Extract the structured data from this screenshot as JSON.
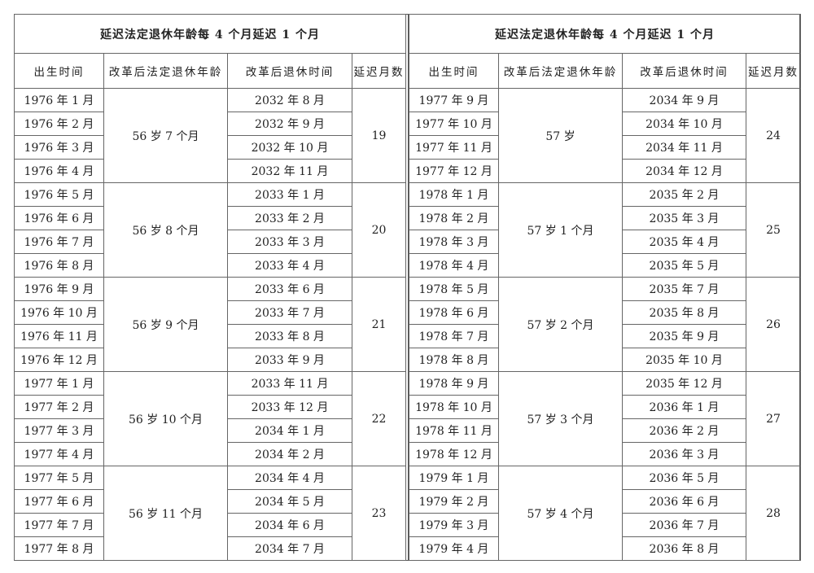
{
  "left": {
    "title": "延迟法定退休年龄每 4 个月延迟 1 个月",
    "headers": [
      "出生时间",
      "改革后法定退休年龄",
      "改革后退休时间",
      "延迟月数"
    ],
    "groups": [
      {
        "birth": [
          "1976 年 1 月",
          "1976 年 2 月",
          "1976 年 3 月",
          "1976 年 4 月"
        ],
        "age": "56 岁 7 个月",
        "retire": [
          "2032 年 8 月",
          "2032 年 9 月",
          "2032 年 10 月",
          "2032 年 11 月"
        ],
        "delay": "19"
      },
      {
        "birth": [
          "1976 年 5 月",
          "1976 年 6 月",
          "1976 年 7 月",
          "1976 年 8 月"
        ],
        "age": "56 岁 8 个月",
        "retire": [
          "2033 年 1 月",
          "2033 年 2 月",
          "2033 年 3 月",
          "2033 年 4 月"
        ],
        "delay": "20"
      },
      {
        "birth": [
          "1976 年 9 月",
          "1976 年 10 月",
          "1976 年 11 月",
          "1976 年 12 月"
        ],
        "age": "56 岁 9 个月",
        "retire": [
          "2033 年 6 月",
          "2033 年 7 月",
          "2033 年 8 月",
          "2033 年 9 月"
        ],
        "delay": "21"
      },
      {
        "birth": [
          "1977 年 1 月",
          "1977 年 2 月",
          "1977 年 3 月",
          "1977 年 4 月"
        ],
        "age": "56 岁 10 个月",
        "retire": [
          "2033 年 11 月",
          "2033 年 12 月",
          "2034 年 1 月",
          "2034 年 2 月"
        ],
        "delay": "22"
      },
      {
        "birth": [
          "1977 年 5 月",
          "1977 年 6 月",
          "1977 年 7 月",
          "1977 年 8 月"
        ],
        "age": "56 岁 11 个月",
        "retire": [
          "2034 年 4 月",
          "2034 年 5 月",
          "2034 年 6 月",
          "2034 年 7 月"
        ],
        "delay": "23"
      }
    ]
  },
  "right": {
    "title": "延迟法定退休年龄每 4 个月延迟 1 个月",
    "headers": [
      "出生时间",
      "改革后法定退休年龄",
      "改革后退休时间",
      "延迟月数"
    ],
    "groups": [
      {
        "birth": [
          "1977 年 9 月",
          "1977 年 10 月",
          "1977 年 11 月",
          "1977 年 12 月"
        ],
        "age": "57 岁",
        "retire": [
          "2034 年 9 月",
          "2034 年 10 月",
          "2034 年 11 月",
          "2034 年 12 月"
        ],
        "delay": "24"
      },
      {
        "birth": [
          "1978 年 1 月",
          "1978 年 2 月",
          "1978 年 3 月",
          "1978 年 4 月"
        ],
        "age": "57 岁 1 个月",
        "retire": [
          "2035 年 2 月",
          "2035 年 3 月",
          "2035 年 4 月",
          "2035 年 5 月"
        ],
        "delay": "25"
      },
      {
        "birth": [
          "1978 年 5 月",
          "1978 年 6 月",
          "1978 年 7 月",
          "1978 年 8 月"
        ],
        "age": "57 岁 2 个月",
        "retire": [
          "2035 年 7 月",
          "2035 年 8 月",
          "2035 年 9 月",
          "2035 年 10 月"
        ],
        "delay": "26"
      },
      {
        "birth": [
          "1978 年 9 月",
          "1978 年 10 月",
          "1978 年 11 月",
          "1978 年 12 月"
        ],
        "age": "57 岁 3 个月",
        "retire": [
          "2035 年 12 月",
          "2036 年 1 月",
          "2036 年 2 月",
          "2036 年 3 月"
        ],
        "delay": "27"
      },
      {
        "birth": [
          "1979 年 1 月",
          "1979 年 2 月",
          "1979 年 3 月",
          "1979 年 4 月"
        ],
        "age": "57 岁 4 个月",
        "retire": [
          "2036 年 5 月",
          "2036 年 6 月",
          "2036 年 7 月",
          "2036 年 8 月"
        ],
        "delay": "28"
      }
    ]
  }
}
